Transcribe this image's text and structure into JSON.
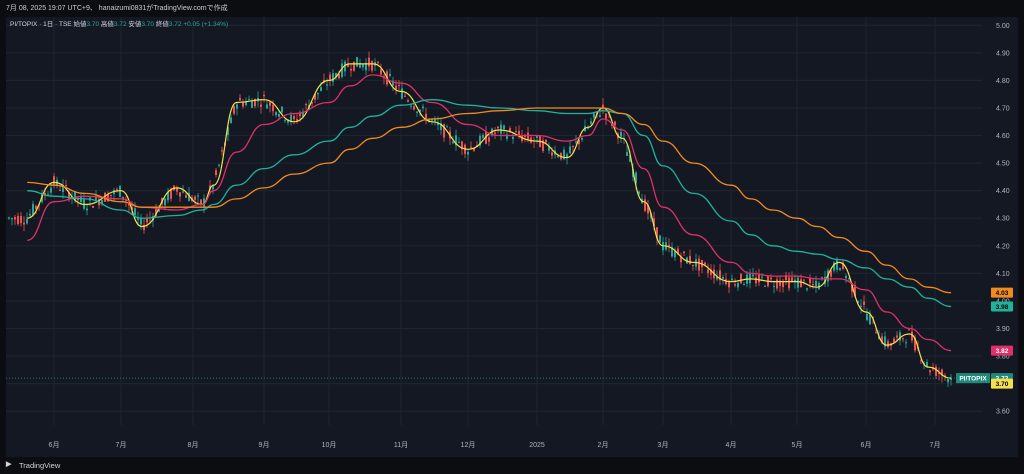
{
  "header": {
    "snapshot_text": "7月 08, 2025 19:07 UTC+9、 hanaizumi0831がTradingView.comで作成"
  },
  "legend": {
    "symbol": "PI/TOPIX",
    "interval": "1日",
    "exchange": "TSE",
    "open_label": "始値",
    "open_value": "3.70",
    "high_label": "高値",
    "high_value": "3.72",
    "low_label": "安値",
    "low_value": "3.70",
    "close_label": "終値",
    "close_value": "3.72",
    "change": "+0.05 (+1.34%)"
  },
  "footer": {
    "brand": "TradingView"
  },
  "colors": {
    "background": "#141823",
    "grid": "#1f2430",
    "up": "#26a69a",
    "down": "#ef5350",
    "ma_short": "#f4e04d",
    "ma_mid": "#e0306a",
    "ma_long": "#1fb39c",
    "ma_longest": "#f28b1f"
  },
  "chart_data": {
    "type": "line",
    "symbol": "PI/TOPIX",
    "interval": "1日",
    "x_tick_labels": [
      "6月",
      "7月",
      "8月",
      "9月",
      "10月",
      "11月",
      "12月",
      "2025",
      "2月",
      "3月",
      "4月",
      "5月",
      "6月",
      "7月"
    ],
    "y_tick_labels": [
      "5.00",
      "4.90",
      "4.80",
      "4.70",
      "4.60",
      "4.50",
      "4.40",
      "4.30",
      "4.20",
      "4.10",
      "4.00",
      "3.90",
      "3.80",
      "3.70",
      "3.60"
    ],
    "ylim": [
      3.55,
      5.03
    ],
    "grid": true,
    "x": [
      "2024-05-20",
      "2024-06-01",
      "2024-06-15",
      "2024-07-01",
      "2024-07-10",
      "2024-07-25",
      "2024-08-05",
      "2024-08-10",
      "2024-08-20",
      "2024-09-01",
      "2024-09-15",
      "2024-10-01",
      "2024-10-10",
      "2024-10-20",
      "2024-11-01",
      "2024-11-15",
      "2024-12-01",
      "2024-12-15",
      "2025-01-01",
      "2025-01-15",
      "2025-01-25",
      "2025-02-01",
      "2025-02-10",
      "2025-02-20",
      "2025-03-01",
      "2025-03-15",
      "2025-04-01",
      "2025-04-10",
      "2025-04-20",
      "2025-05-01",
      "2025-05-10",
      "2025-05-20",
      "2025-06-01",
      "2025-06-10",
      "2025-06-20",
      "2025-06-28",
      "2025-07-08"
    ],
    "series": [
      {
        "values": [
          4.3,
          4.43,
          4.35,
          4.4,
          4.27,
          4.41,
          4.35,
          4.42,
          4.72,
          4.73,
          4.65,
          4.8,
          4.86,
          4.86,
          4.76,
          4.65,
          4.55,
          4.62,
          4.58,
          4.52,
          4.63,
          4.7,
          4.59,
          4.36,
          4.2,
          4.14,
          4.07,
          4.08,
          4.07,
          4.07,
          4.05,
          4.14,
          3.96,
          3.84,
          3.88,
          3.76,
          3.72
        ]
      },
      {
        "values": [
          4.22,
          4.36,
          4.38,
          4.37,
          4.34,
          4.33,
          4.35,
          4.4,
          4.54,
          4.64,
          4.68,
          4.72,
          4.78,
          4.82,
          4.79,
          4.72,
          4.64,
          4.6,
          4.6,
          4.58,
          4.6,
          4.66,
          4.62,
          4.48,
          4.34,
          4.24,
          4.14,
          4.1,
          4.09,
          4.09,
          4.08,
          4.08,
          4.04,
          3.96,
          3.9,
          3.86,
          3.82
        ]
      },
      {
        "values": [
          4.4,
          4.38,
          4.37,
          4.33,
          4.3,
          4.31,
          4.33,
          4.35,
          4.42,
          4.48,
          4.53,
          4.58,
          4.63,
          4.67,
          4.71,
          4.73,
          4.71,
          4.7,
          4.69,
          4.68,
          4.68,
          4.69,
          4.68,
          4.6,
          4.49,
          4.39,
          4.29,
          4.24,
          4.2,
          4.18,
          4.17,
          4.15,
          4.12,
          4.08,
          4.05,
          4.01,
          3.98
        ]
      },
      {
        "values": [
          4.43,
          4.42,
          4.39,
          4.36,
          4.34,
          4.34,
          4.34,
          4.34,
          4.37,
          4.41,
          4.46,
          4.5,
          4.55,
          4.59,
          4.63,
          4.66,
          4.68,
          4.69,
          4.7,
          4.7,
          4.7,
          4.7,
          4.68,
          4.64,
          4.58,
          4.5,
          4.42,
          4.37,
          4.33,
          4.3,
          4.27,
          4.23,
          4.18,
          4.13,
          4.08,
          4.05,
          4.03
        ]
      }
    ],
    "price_labels": [
      {
        "text": "4.03",
        "value": 4.03,
        "color": "#f28b1f",
        "text_color": "#000000"
      },
      {
        "text": "3.98",
        "value": 3.98,
        "color": "#1fb39c",
        "text_color": "#000000"
      },
      {
        "text": "3.82",
        "value": 3.82,
        "color": "#e0306a",
        "text_color": "#ffffff"
      },
      {
        "text": "3.72",
        "value": 3.72,
        "color": "#1f8a7a",
        "text_color": "#ffffff",
        "tag": "PI/TOPIX"
      },
      {
        "text": "3.70",
        "value": 3.7,
        "color": "#f4e04d",
        "text_color": "#000000"
      }
    ]
  }
}
